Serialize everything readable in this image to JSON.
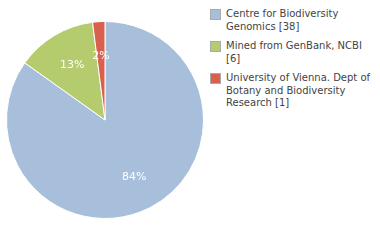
{
  "chart_data": {
    "type": "pie",
    "categories": [
      "Centre for Biodiversity\nGenomics [38]",
      "Mined from GenBank, NCBI [6]",
      "University of Vienna. Dept of\nBotany and Biodiversity\nResearch [1]"
    ],
    "values": [
      84,
      13,
      2
    ],
    "value_labels": [
      "84%",
      "13%",
      "2%"
    ],
    "colors": [
      "#a8bfdc",
      "#b5cc6e",
      "#d9604c"
    ],
    "data_labels": true,
    "legend": "right"
  }
}
